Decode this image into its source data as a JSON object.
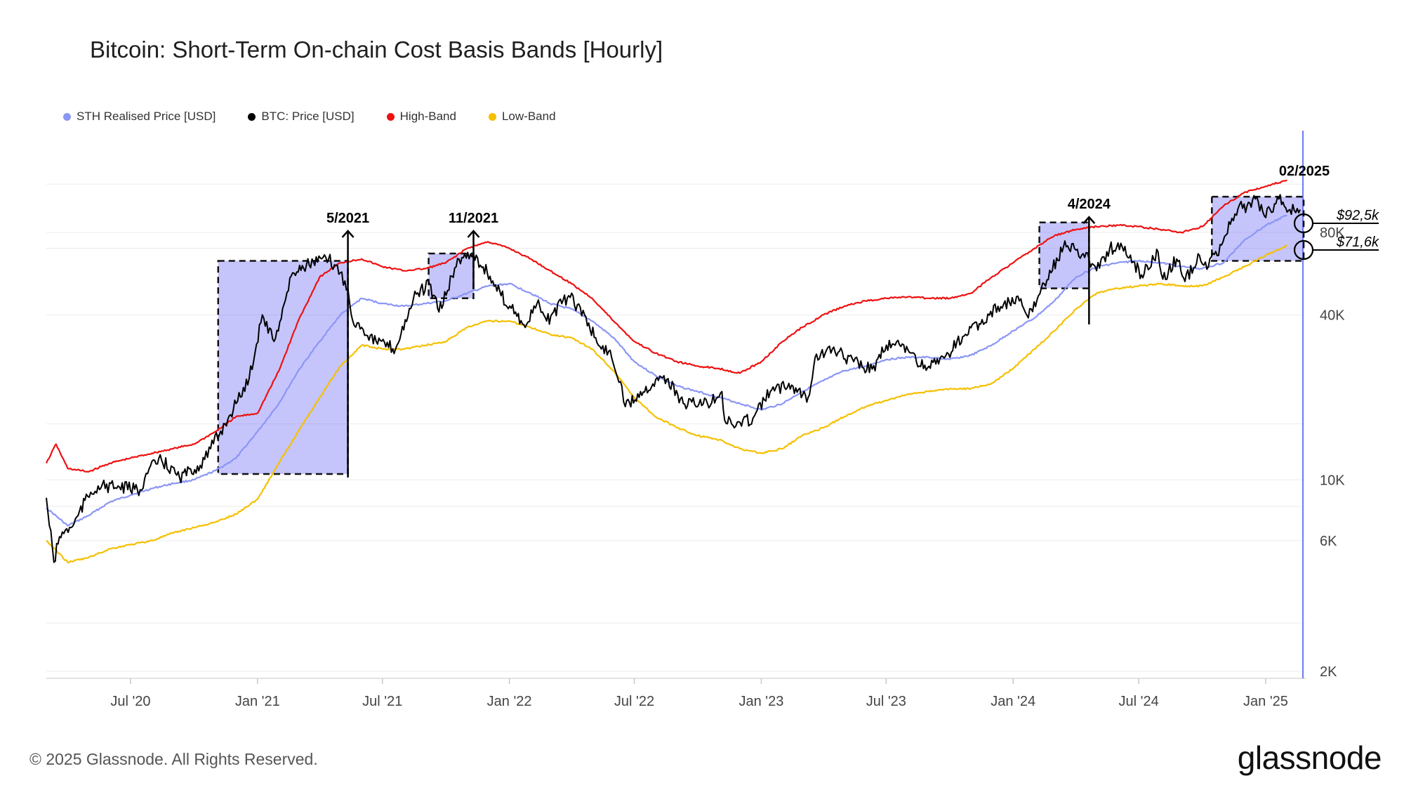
{
  "title": "Bitcoin: Short-Term On-chain Cost Basis Bands [Hourly]",
  "legend": [
    {
      "label": "STH Realised Price [USD]",
      "color": "#8b96f5"
    },
    {
      "label": "BTC: Price [USD]",
      "color": "#000000"
    },
    {
      "label": "High-Band",
      "color": "#ee1111"
    },
    {
      "label": "Low-Band",
      "color": "#f5c000"
    }
  ],
  "footer": {
    "copyright": "© 2025 Glassnode. All Rights Reserved.",
    "logo": "glassnode"
  },
  "chart_data": {
    "type": "line",
    "y_scale": "log",
    "x_ticks": [
      "Jul '20",
      "Jan '21",
      "Jul '21",
      "Jan '22",
      "Jul '22",
      "Jan '23",
      "Jul '23",
      "Jan '24",
      "Jul '24",
      "Jan '25"
    ],
    "y_ticks": [
      "2K",
      "6K",
      "10K",
      "40K",
      "80K"
    ],
    "series": [
      {
        "name": "STH Realised Price [USD]",
        "color": "#8b96f5",
        "x": [
          "2020-03-01",
          "2020-04-01",
          "2020-05-01",
          "2020-06-01",
          "2020-07-01",
          "2020-08-01",
          "2020-09-01",
          "2020-10-01",
          "2020-11-01",
          "2020-12-01",
          "2021-01-01",
          "2021-02-01",
          "2021-03-01",
          "2021-04-01",
          "2021-05-01",
          "2021-06-01",
          "2021-07-01",
          "2021-08-01",
          "2021-09-01",
          "2021-10-01",
          "2021-11-01",
          "2021-12-01",
          "2022-01-01",
          "2022-02-01",
          "2022-03-01",
          "2022-04-01",
          "2022-05-01",
          "2022-06-01",
          "2022-07-01",
          "2022-08-01",
          "2022-09-01",
          "2022-10-01",
          "2022-11-01",
          "2022-12-01",
          "2023-01-01",
          "2023-02-01",
          "2023-03-01",
          "2023-04-01",
          "2023-05-01",
          "2023-06-01",
          "2023-07-01",
          "2023-08-01",
          "2023-09-01",
          "2023-10-01",
          "2023-11-01",
          "2023-12-01",
          "2024-01-01",
          "2024-02-01",
          "2024-03-01",
          "2024-04-01",
          "2024-05-01",
          "2024-06-01",
          "2024-07-01",
          "2024-08-01",
          "2024-09-01",
          "2024-10-01",
          "2024-11-01",
          "2024-12-01",
          "2025-01-01",
          "2025-02-01"
        ],
        "y": [
          7900,
          6800,
          7400,
          8300,
          8800,
          9300,
          9700,
          10000,
          10800,
          12000,
          15000,
          19000,
          25000,
          32000,
          40000,
          46000,
          44000,
          43000,
          44000,
          45000,
          48000,
          51000,
          52000,
          48000,
          44000,
          42000,
          38000,
          33000,
          27000,
          24000,
          22000,
          21000,
          20000,
          19000,
          18000,
          19000,
          21000,
          23000,
          25000,
          26000,
          27500,
          28000,
          28000,
          27500,
          28500,
          31000,
          35000,
          39000,
          45000,
          55000,
          60000,
          62000,
          63000,
          62000,
          60000,
          59000,
          62000,
          75000,
          85000,
          92500
        ]
      },
      {
        "name": "High-Band",
        "color": "#ee1111",
        "x": [
          "2020-03-01",
          "2020-03-15",
          "2020-04-01",
          "2020-05-01",
          "2020-06-01",
          "2020-07-01",
          "2020-08-01",
          "2020-09-01",
          "2020-10-01",
          "2020-11-01",
          "2020-12-01",
          "2021-01-01",
          "2021-02-01",
          "2021-03-01",
          "2021-04-01",
          "2021-05-01",
          "2021-06-01",
          "2021-07-01",
          "2021-08-01",
          "2021-09-01",
          "2021-10-01",
          "2021-11-01",
          "2021-12-01",
          "2022-01-01",
          "2022-02-01",
          "2022-03-01",
          "2022-04-01",
          "2022-05-01",
          "2022-06-01",
          "2022-07-01",
          "2022-08-01",
          "2022-09-01",
          "2022-10-01",
          "2022-11-01",
          "2022-12-01",
          "2023-01-01",
          "2023-02-01",
          "2023-03-01",
          "2023-04-01",
          "2023-05-01",
          "2023-06-01",
          "2023-07-01",
          "2023-08-01",
          "2023-09-01",
          "2023-10-01",
          "2023-11-01",
          "2023-12-01",
          "2024-01-01",
          "2024-02-01",
          "2024-03-01",
          "2024-04-01",
          "2024-05-01",
          "2024-06-01",
          "2024-07-01",
          "2024-08-01",
          "2024-09-01",
          "2024-10-01",
          "2024-11-01",
          "2024-12-01",
          "2025-01-01",
          "2025-02-01"
        ],
        "y": [
          11500,
          13500,
          11000,
          10700,
          11500,
          12000,
          12500,
          13000,
          13500,
          15000,
          17000,
          17500,
          25000,
          38000,
          55000,
          62000,
          64000,
          60000,
          58000,
          59000,
          62000,
          70000,
          74000,
          70000,
          64000,
          58000,
          52000,
          46000,
          38000,
          32000,
          29000,
          27000,
          26000,
          25500,
          24500,
          27000,
          32000,
          36000,
          40000,
          43000,
          45000,
          46000,
          46500,
          46000,
          46000,
          48000,
          55000,
          62000,
          70000,
          78000,
          82000,
          84000,
          85000,
          84000,
          82000,
          80000,
          84000,
          100000,
          112000,
          118000,
          124000
        ]
      },
      {
        "name": "Low-Band",
        "color": "#f5c000",
        "x": [
          "2020-03-01",
          "2020-04-01",
          "2020-05-01",
          "2020-06-01",
          "2020-07-01",
          "2020-08-01",
          "2020-09-01",
          "2020-10-01",
          "2020-11-01",
          "2020-12-01",
          "2021-01-01",
          "2021-02-01",
          "2021-03-01",
          "2021-04-01",
          "2021-05-01",
          "2021-06-01",
          "2021-07-01",
          "2021-08-01",
          "2021-09-01",
          "2021-10-01",
          "2021-11-01",
          "2021-12-01",
          "2022-01-01",
          "2022-02-01",
          "2022-03-01",
          "2022-04-01",
          "2022-05-01",
          "2022-06-01",
          "2022-07-01",
          "2022-08-01",
          "2022-09-01",
          "2022-10-01",
          "2022-11-01",
          "2022-12-01",
          "2023-01-01",
          "2023-02-01",
          "2023-03-01",
          "2023-04-01",
          "2023-05-01",
          "2023-06-01",
          "2023-07-01",
          "2023-08-01",
          "2023-09-01",
          "2023-10-01",
          "2023-11-01",
          "2023-12-01",
          "2024-01-01",
          "2024-02-01",
          "2024-03-01",
          "2024-04-01",
          "2024-05-01",
          "2024-06-01",
          "2024-07-01",
          "2024-08-01",
          "2024-09-01",
          "2024-10-01",
          "2024-11-01",
          "2024-12-01",
          "2025-01-01",
          "2025-02-01"
        ],
        "y": [
          6000,
          5000,
          5200,
          5600,
          5800,
          6000,
          6400,
          6700,
          7000,
          7500,
          8500,
          11500,
          15000,
          20000,
          26000,
          31000,
          30000,
          30000,
          31000,
          32000,
          36000,
          38000,
          38000,
          36000,
          34000,
          33000,
          30000,
          25000,
          20000,
          17000,
          15500,
          14500,
          14000,
          13000,
          12500,
          13000,
          14500,
          15500,
          17000,
          18500,
          19500,
          20500,
          21000,
          21500,
          21500,
          22500,
          25500,
          30000,
          35000,
          42000,
          48000,
          50000,
          51000,
          52000,
          51000,
          51000,
          55000,
          60000,
          66000,
          71600
        ]
      },
      {
        "name": "BTC: Price [USD]",
        "color": "#000000",
        "x": [
          "2020-03-01",
          "2020-03-12",
          "2020-03-20",
          "2020-04-10",
          "2020-04-30",
          "2020-05-15",
          "2020-06-15",
          "2020-07-15",
          "2020-07-28",
          "2020-08-15",
          "2020-09-10",
          "2020-10-10",
          "2020-10-25",
          "2020-11-15",
          "2020-12-01",
          "2020-12-20",
          "2021-01-08",
          "2021-01-25",
          "2021-02-21",
          "2021-03-13",
          "2021-04-14",
          "2021-05-01",
          "2021-05-12",
          "2021-05-19",
          "2021-06-01",
          "2021-06-22",
          "2021-07-20",
          "2021-08-15",
          "2021-09-07",
          "2021-09-21",
          "2021-10-20",
          "2021-11-10",
          "2021-11-30",
          "2021-12-20",
          "2022-01-10",
          "2022-01-24",
          "2022-02-10",
          "2022-02-24",
          "2022-03-28",
          "2022-04-20",
          "2022-05-10",
          "2022-05-25",
          "2022-06-13",
          "2022-06-18",
          "2022-07-10",
          "2022-08-13",
          "2022-09-10",
          "2022-10-15",
          "2022-11-05",
          "2022-11-09",
          "2022-11-21",
          "2022-12-20",
          "2023-01-14",
          "2023-02-10",
          "2023-03-10",
          "2023-03-20",
          "2023-04-14",
          "2023-05-15",
          "2023-06-15",
          "2023-06-25",
          "2023-07-14",
          "2023-08-10",
          "2023-08-18",
          "2023-09-15",
          "2023-10-24",
          "2023-11-15",
          "2023-12-10",
          "2024-01-10",
          "2024-01-23",
          "2024-02-15",
          "2024-03-14",
          "2024-04-01",
          "2024-04-20",
          "2024-05-01",
          "2024-05-20",
          "2024-06-07",
          "2024-07-05",
          "2024-07-29",
          "2024-08-05",
          "2024-08-25",
          "2024-09-06",
          "2024-09-27",
          "2024-10-10",
          "2024-10-29",
          "2024-11-13",
          "2024-11-22",
          "2024-12-05",
          "2024-12-17",
          "2024-12-30",
          "2025-01-20",
          "2025-02-05",
          "2025-02-20"
        ],
        "y": [
          8600,
          5000,
          6200,
          6900,
          8700,
          9500,
          9400,
          9200,
          11000,
          11800,
          10200,
          11300,
          13000,
          16000,
          19000,
          23500,
          40000,
          32000,
          57000,
          61000,
          64000,
          57000,
          50000,
          38000,
          36000,
          32000,
          30000,
          46000,
          52000,
          41000,
          64000,
          67000,
          57000,
          47000,
          41000,
          36000,
          44000,
          38000,
          47000,
          40000,
          31000,
          29500,
          22000,
          18500,
          21000,
          24000,
          19000,
          19000,
          21000,
          16500,
          15800,
          16800,
          21000,
          22500,
          20000,
          28000,
          30000,
          27000,
          25000,
          30500,
          31000,
          29000,
          26000,
          26500,
          34000,
          37000,
          43000,
          45000,
          39000,
          52000,
          71000,
          69000,
          64000,
          58000,
          70000,
          71000,
          56000,
          68000,
          54000,
          64000,
          53000,
          66000,
          60000,
          72000,
          90000,
          98000,
          100000,
          106000,
          92000,
          106000,
          97000,
          97000
        ]
      }
    ],
    "annotations": [
      {
        "text": "5/2021",
        "x": "2021-05-12"
      },
      {
        "text": "11/2021",
        "x": "2021-11-10"
      },
      {
        "text": "4/2024",
        "x": "2024-04-20"
      },
      {
        "text": "02/2025",
        "x": "2025-02-15"
      }
    ],
    "value_labels": [
      {
        "text": "$92,5k",
        "value": 92500
      },
      {
        "text": "$71,6k",
        "value": 71600
      }
    ],
    "highlight_boxes": [
      {
        "from": "2020-11-05",
        "to": "2021-05-12",
        "low": 10500,
        "high": 63000
      },
      {
        "from": "2021-09-06",
        "to": "2021-11-10",
        "low": 46000,
        "high": 67000
      },
      {
        "from": "2024-02-08",
        "to": "2024-04-20",
        "low": 50000,
        "high": 87000
      },
      {
        "from": "2024-10-15",
        "to": "2025-02-25",
        "low": 63000,
        "high": 108000
      }
    ]
  }
}
